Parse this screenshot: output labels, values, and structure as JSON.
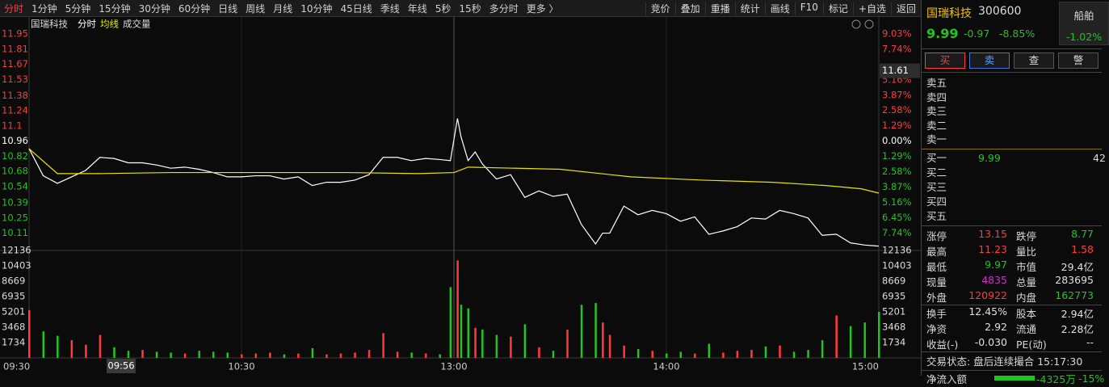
{
  "toolbar": {
    "left_tabs": [
      "分时",
      "1分钟",
      "5分钟",
      "15分钟",
      "30分钟",
      "60分钟",
      "日线",
      "周线",
      "月线",
      "10分钟",
      "45日线",
      "季线",
      "年线",
      "5秒",
      "15秒",
      "多分时",
      "更多 〉"
    ],
    "right_tabs": [
      "竞价",
      "叠加",
      "重播",
      "统计",
      "画线",
      "F10",
      "标记",
      "+自选",
      "返回"
    ]
  },
  "chart_data": [
    {
      "type": "line",
      "title": "国瑞科技",
      "x": [
        0,
        4,
        8,
        12,
        16,
        20,
        24,
        28,
        32,
        36,
        40,
        44,
        48,
        52,
        56,
        60,
        64,
        68,
        72,
        76,
        80,
        84,
        88,
        92,
        96,
        100,
        104,
        108,
        112,
        116,
        119,
        121,
        122,
        124,
        126,
        128,
        132,
        136,
        140,
        144,
        148,
        152,
        156,
        160,
        162,
        164,
        168,
        172,
        176,
        180,
        184,
        188,
        192,
        196,
        200,
        204,
        208,
        212,
        216,
        220,
        224,
        228,
        232,
        236,
        240
      ],
      "series": [
        {
          "name": "分时",
          "color": "#ffffff",
          "values": [
            10.89,
            10.64,
            10.57,
            10.63,
            10.69,
            10.81,
            10.8,
            10.76,
            10.76,
            10.74,
            10.71,
            10.72,
            10.7,
            10.67,
            10.63,
            10.63,
            10.64,
            10.64,
            10.61,
            10.63,
            10.55,
            10.58,
            10.58,
            10.6,
            10.65,
            10.81,
            10.81,
            10.78,
            10.8,
            10.79,
            10.78,
            11.17,
            11.0,
            10.78,
            10.86,
            10.75,
            10.61,
            10.65,
            10.44,
            10.5,
            10.45,
            10.47,
            10.19,
            10.01,
            10.11,
            10.11,
            10.36,
            10.28,
            10.32,
            10.29,
            10.22,
            10.26,
            10.1,
            10.13,
            10.17,
            10.25,
            10.24,
            10.32,
            10.29,
            10.25,
            10.09,
            10.1,
            10.02,
            10.0,
            9.99
          ]
        },
        {
          "name": "均线",
          "color": "#e6e600",
          "x": [
            0,
            8,
            20,
            40,
            60,
            90,
            110,
            120,
            124,
            150,
            170,
            190,
            210,
            225,
            235,
            240
          ],
          "values": [
            10.89,
            10.66,
            10.66,
            10.67,
            10.67,
            10.67,
            10.66,
            10.67,
            10.72,
            10.7,
            10.63,
            10.6,
            10.58,
            10.55,
            10.52,
            10.48
          ]
        }
      ],
      "xlim": [
        0,
        240
      ],
      "xticks": [
        {
          "value": 0,
          "label": "09:30"
        },
        {
          "value": 60,
          "label": "10:30"
        },
        {
          "value": 120,
          "label": "13:00"
        },
        {
          "value": 180,
          "label": "14:00"
        },
        {
          "value": 240,
          "label": "15:00"
        }
      ],
      "ylim": [
        9.95,
        12.04
      ],
      "yticks": [
        11.95,
        11.81,
        11.67,
        11.53,
        11.38,
        11.24,
        11.1,
        10.96,
        10.82,
        10.68,
        10.54,
        10.39,
        10.25,
        10.11
      ],
      "y2lim": [
        -9.22,
        9.85
      ],
      "y2ticks": [
        {
          "value": 9.03,
          "label": "9.03%"
        },
        {
          "value": 7.74,
          "label": "7.74%"
        },
        {
          "value": 5.16,
          "label": "5.16%"
        },
        {
          "value": 3.87,
          "label": "3.87%"
        },
        {
          "value": 2.58,
          "label": "2.58%"
        },
        {
          "value": 1.29,
          "label": "1.29%"
        },
        {
          "value": 0,
          "label": "0.00%"
        },
        {
          "value": -1.29,
          "label": "1.29%"
        },
        {
          "value": -2.58,
          "label": "2.58%"
        },
        {
          "value": -3.87,
          "label": "3.87%"
        },
        {
          "value": -5.16,
          "label": "5.16%"
        },
        {
          "value": -6.45,
          "label": "6.45%"
        },
        {
          "value": -7.74,
          "label": "7.74%"
        }
      ],
      "up_color": "#ff3b3b",
      "down_color": "#22c322",
      "cursor_x": {
        "value": 26,
        "label": "09:56"
      },
      "cursor_y": 11.61
    },
    {
      "type": "bar",
      "title": "成交量",
      "x": [
        0,
        4,
        8,
        12,
        16,
        20,
        24,
        28,
        32,
        36,
        40,
        44,
        48,
        52,
        56,
        60,
        64,
        68,
        72,
        76,
        80,
        84,
        88,
        92,
        96,
        100,
        104,
        108,
        112,
        116,
        119,
        121,
        122,
        124,
        126,
        128,
        132,
        136,
        140,
        144,
        148,
        152,
        156,
        160,
        162,
        164,
        168,
        172,
        176,
        180,
        184,
        188,
        192,
        196,
        200,
        204,
        208,
        212,
        216,
        220,
        224,
        228,
        232,
        236,
        240
      ],
      "values": [
        5400,
        3000,
        2500,
        2000,
        1500,
        2600,
        1200,
        800,
        900,
        700,
        600,
        500,
        800,
        700,
        600,
        400,
        500,
        600,
        400,
        500,
        1100,
        400,
        500,
        600,
        900,
        2800,
        700,
        600,
        500,
        400,
        8000,
        11000,
        6000,
        5600,
        3400,
        3200,
        2600,
        2400,
        3800,
        1200,
        800,
        3200,
        6000,
        6200,
        4000,
        2600,
        1400,
        1000,
        800,
        500,
        700,
        500,
        1600,
        600,
        800,
        900,
        1300,
        1400,
        700,
        900,
        2000,
        4800,
        3600,
        4000,
        5200
      ],
      "xlim": [
        0,
        240
      ],
      "ylim": [
        0,
        12136
      ],
      "yticks": [
        12136,
        10403,
        8669,
        6935,
        5201,
        3468,
        1734
      ]
    }
  ],
  "quote": {
    "name": "国瑞科技",
    "code": "300600",
    "sector": "船舶",
    "sector_change": "-1.02%",
    "price": "9.99",
    "change": "-0.97",
    "change_pct": "-8.85%"
  },
  "actions": [
    "买",
    "卖",
    "查",
    "警"
  ],
  "asks": [
    "卖五",
    "卖四",
    "卖三",
    "卖二",
    "卖一"
  ],
  "bids": [
    {
      "label": "买一",
      "price": "9.99",
      "volume": "42"
    },
    {
      "label": "买二"
    },
    {
      "label": "买三"
    },
    {
      "label": "买四"
    },
    {
      "label": "买五"
    }
  ],
  "stats": [
    [
      {
        "label": "涨停",
        "value": "13.15",
        "color": "#ff3b3b"
      },
      {
        "label": "跌停",
        "value": "8.77",
        "color": "#22c322"
      }
    ],
    [
      {
        "label": "最高",
        "value": "11.23",
        "color": "#ff3b3b"
      },
      {
        "label": "量比",
        "value": "1.58",
        "color": "#ff3b3b"
      }
    ],
    [
      {
        "label": "最低",
        "value": "9.97",
        "color": "#22c322"
      },
      {
        "label": "市值",
        "value": "29.4亿"
      }
    ],
    [
      {
        "label": "现量",
        "value": "4835",
        "color": "#cc33cc"
      },
      {
        "label": "总量",
        "value": "283695"
      }
    ],
    [
      {
        "label": "外盘",
        "value": "120922",
        "color": "#ff3b3b"
      },
      {
        "label": "内盘",
        "value": "162773",
        "color": "#22c322"
      }
    ],
    [
      {
        "label": "换手",
        "value": "12.45%"
      },
      {
        "label": "股本",
        "value": "2.94亿"
      }
    ],
    [
      {
        "label": "净资",
        "value": "2.92"
      },
      {
        "label": "流通",
        "value": "2.28亿"
      }
    ],
    [
      {
        "label": "收益(-)",
        "value": "-0.030"
      },
      {
        "label": "PE(动)",
        "value": "--"
      }
    ]
  ],
  "status": {
    "label": "交易状态:",
    "value": "盘后连续撮合 15:17:30"
  },
  "flow": {
    "label": "净流入额",
    "value": "-4325万",
    "pct": "-15%"
  }
}
